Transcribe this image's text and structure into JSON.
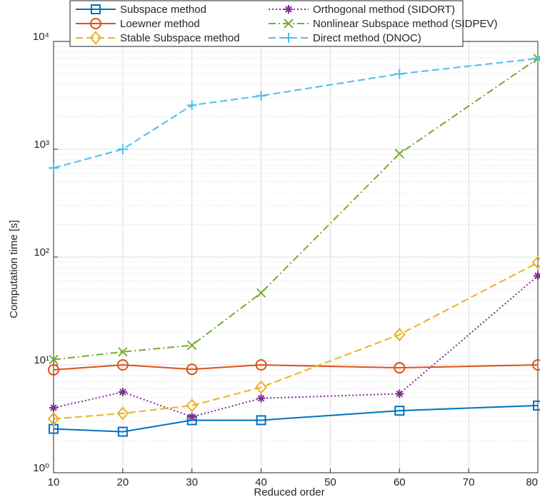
{
  "chart_data": {
    "type": "line",
    "xlabel": "Reduced order",
    "ylabel": "Computation time [s]",
    "x": [
      10,
      20,
      30,
      40,
      60,
      80
    ],
    "xlim": [
      10,
      80
    ],
    "xticks": [
      10,
      20,
      30,
      40,
      50,
      60,
      70,
      80
    ],
    "ylim": [
      1,
      10000
    ],
    "yscale": "log",
    "yticks": [
      {
        "value": 1,
        "label": "10⁰"
      },
      {
        "value": 10,
        "label": "10¹"
      },
      {
        "value": 100,
        "label": "10²"
      },
      {
        "value": 1000,
        "label": "10³"
      },
      {
        "value": 10000,
        "label": "10⁴"
      }
    ],
    "grid": true,
    "legend": "top",
    "series": [
      {
        "name": "Subspace method",
        "color": "#0072bd",
        "marker": "square",
        "linestyle": "solid",
        "values": [
          2.55,
          2.4,
          3.07,
          3.07,
          3.76,
          4.2
        ]
      },
      {
        "name": "Orthogonal method (SIDORT)",
        "color": "#7e2f8e",
        "marker": "asterisk",
        "linestyle": "dotted",
        "values": [
          4.0,
          5.6,
          3.3,
          4.9,
          5.4,
          67
        ]
      },
      {
        "name": "Loewner method",
        "color": "#d95319",
        "marker": "circle",
        "linestyle": "solid",
        "values": [
          9.0,
          10.0,
          9.1,
          10.0,
          9.4,
          10.0
        ]
      },
      {
        "name": "Nonlinear Subspace method (SIDPEV)",
        "color": "#77ac30",
        "marker": "x",
        "linestyle": "dashdot",
        "values": [
          11.2,
          13.2,
          15.2,
          46.5,
          910,
          6950
        ]
      },
      {
        "name": "Stable Subspace method",
        "color": "#edb120",
        "marker": "diamond",
        "linestyle": "dashed",
        "values": [
          3.16,
          3.55,
          4.2,
          6.2,
          19.1,
          89
        ]
      },
      {
        "name": "Direct method (DNOC)",
        "color": "#4dbeee",
        "marker": "plus",
        "linestyle": "dashed",
        "values": [
          670,
          1000,
          2560,
          3130,
          5000,
          6950
        ]
      }
    ]
  }
}
